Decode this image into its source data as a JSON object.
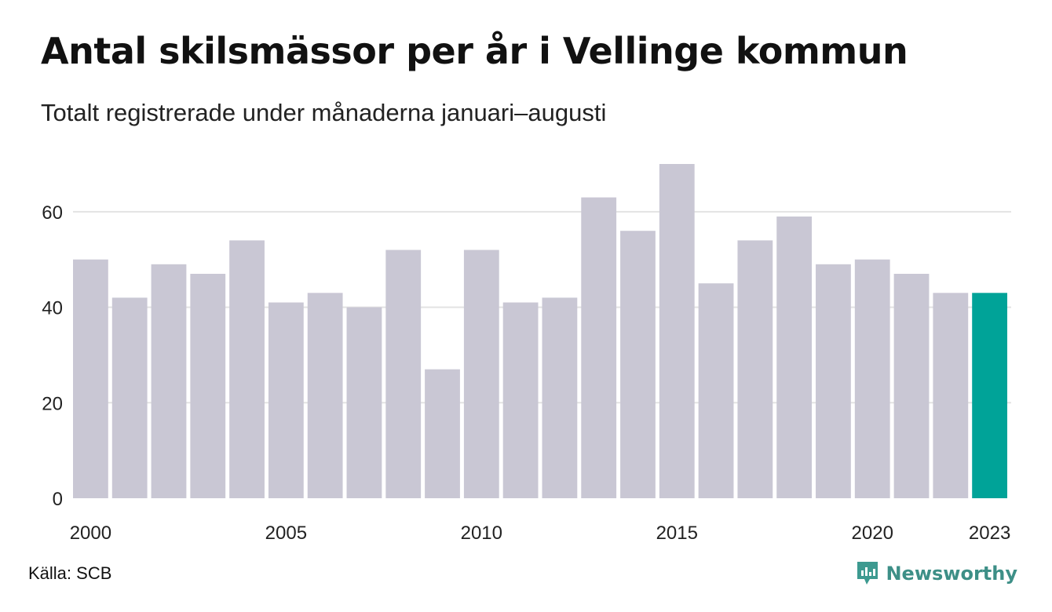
{
  "title": "Antal skilsmässor per år i Vellinge kommun",
  "subtitle": "Totalt registrerade under månaderna januari–augusti",
  "source": "Källa: SCB",
  "brand": {
    "name": "Newsworthy",
    "icon": "newsworthy-logo-icon",
    "color": "#3d9a90"
  },
  "colors": {
    "bar": "#c9c7d4",
    "highlight": "#00a398",
    "grid": "#e3e3e3"
  },
  "chart_data": {
    "type": "bar",
    "title": "Antal skilsmässor per år i Vellinge kommun",
    "subtitle": "Totalt registrerade under månaderna januari–augusti",
    "categories": [
      2000,
      2001,
      2002,
      2003,
      2004,
      2005,
      2006,
      2007,
      2008,
      2009,
      2010,
      2011,
      2012,
      2013,
      2014,
      2015,
      2016,
      2017,
      2018,
      2019,
      2020,
      2021,
      2022,
      2023
    ],
    "values": [
      50,
      42,
      49,
      47,
      54,
      41,
      43,
      40,
      52,
      27,
      52,
      41,
      42,
      63,
      56,
      70,
      45,
      54,
      59,
      49,
      50,
      47,
      43,
      43
    ],
    "highlight_category": 2023,
    "x_tick_labels": [
      "2000",
      "2005",
      "2010",
      "2015",
      "2020",
      "2023"
    ],
    "y_ticks": [
      0,
      20,
      40,
      60
    ],
    "ylim": [
      0,
      70
    ],
    "xlabel": "",
    "ylabel": "",
    "grid": "horizontal"
  }
}
